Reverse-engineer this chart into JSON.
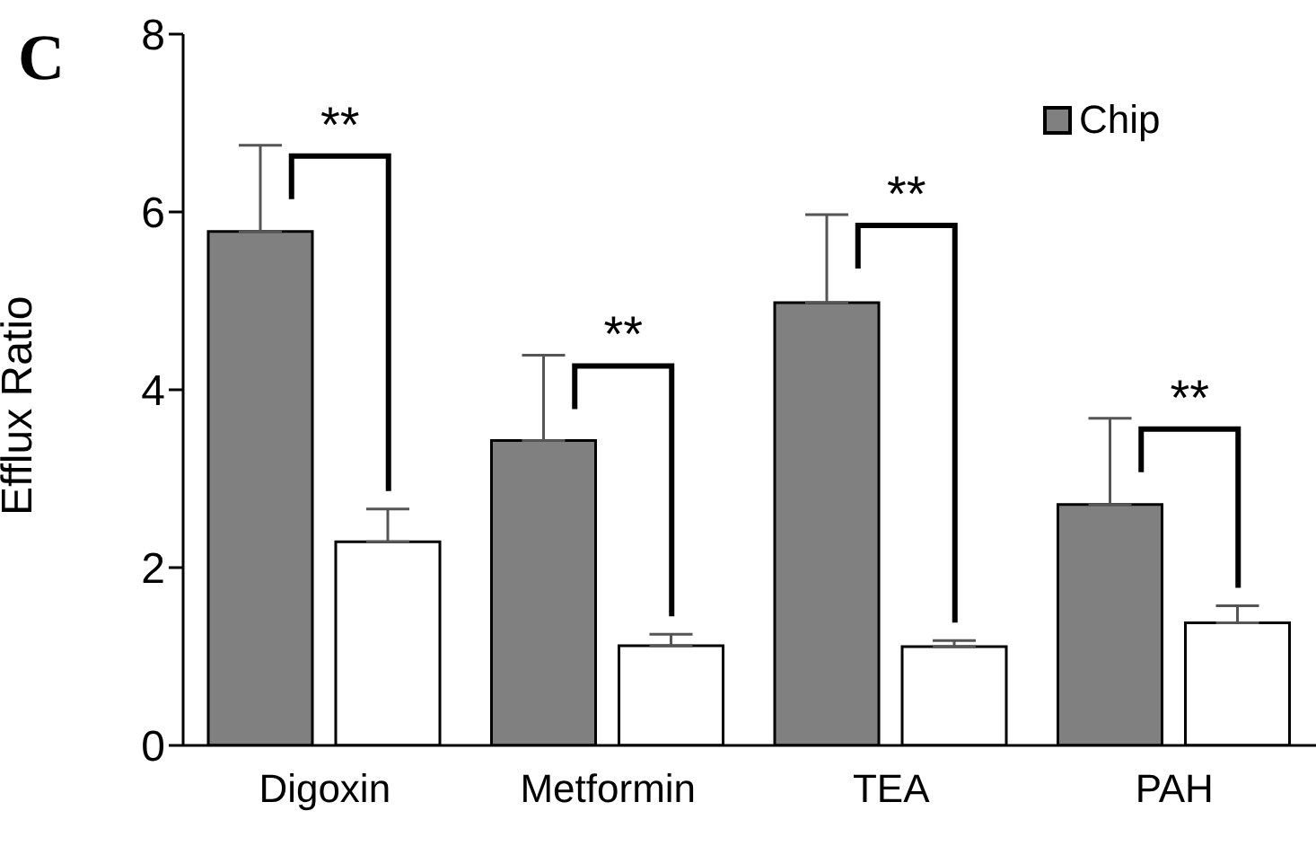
{
  "chart_data": {
    "type": "bar",
    "ylabel": "Efflux Ratio",
    "categories": [
      "Digoxin",
      "Metformin",
      "TEA",
      "PAH"
    ],
    "series": [
      {
        "name": "Chip",
        "color": "#808080",
        "values": [
          5.78,
          3.43,
          4.98,
          2.71
        ],
        "errors": [
          [
            5.78,
            6.75
          ],
          [
            3.43,
            4.39
          ],
          [
            4.98,
            5.97
          ],
          [
            2.71,
            3.68
          ]
        ]
      },
      {
        "color": "#ffffff",
        "values": [
          2.29,
          1.12,
          1.11,
          1.38
        ],
        "errors": [
          [
            2.29,
            2.66
          ],
          [
            1.12,
            1.25
          ],
          [
            1.11,
            1.18
          ],
          [
            1.38,
            1.57
          ]
        ]
      }
    ],
    "ylim": [
      0,
      8
    ],
    "yticks": [
      0,
      2,
      4,
      6,
      8
    ],
    "legend": "top right",
    "annotations": [
      "C",
      "**",
      "**",
      "**",
      "**"
    ]
  }
}
